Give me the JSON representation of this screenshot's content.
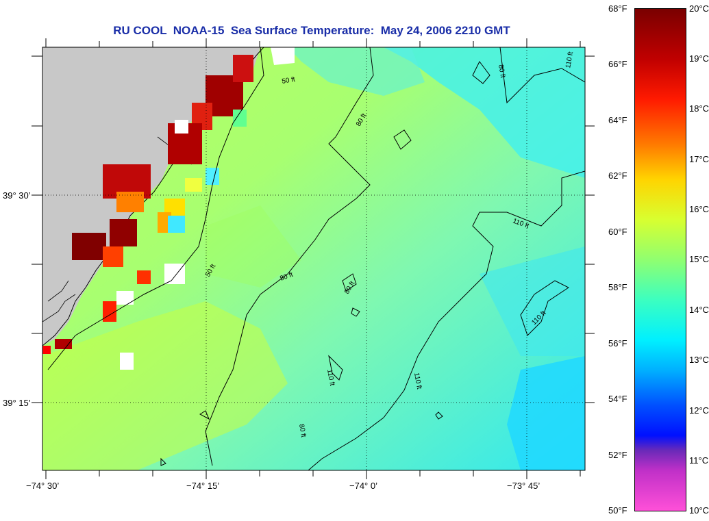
{
  "title": "RU COOL  NOAA-15  Sea Surface Temperature:  May 24, 2006 2210 GMT",
  "lat_labels": [
    "39° 30’",
    "39° 15’"
  ],
  "lon_labels": [
    "−74° 30’",
    "−74° 15’",
    "−74° 0’",
    "−73° 45’"
  ],
  "colorbar": {
    "fahrenheit": [
      "68°F",
      "66°F",
      "64°F",
      "62°F",
      "60°F",
      "58°F",
      "56°F",
      "54°F",
      "52°F",
      "50°F"
    ],
    "celsius": [
      "20°C",
      "19°C",
      "18°C",
      "17°C",
      "16°C",
      "15°C",
      "14°C",
      "13°C",
      "12°C",
      "11°C",
      "10°C"
    ]
  },
  "contour_labels": [
    "50 ft",
    "80 ft",
    "110 ft"
  ],
  "colors": {
    "land": "#c8c8c8",
    "ocean": "#78f0c8",
    "warm_core": "#8b0000",
    "title": "#1a2ea8"
  }
}
